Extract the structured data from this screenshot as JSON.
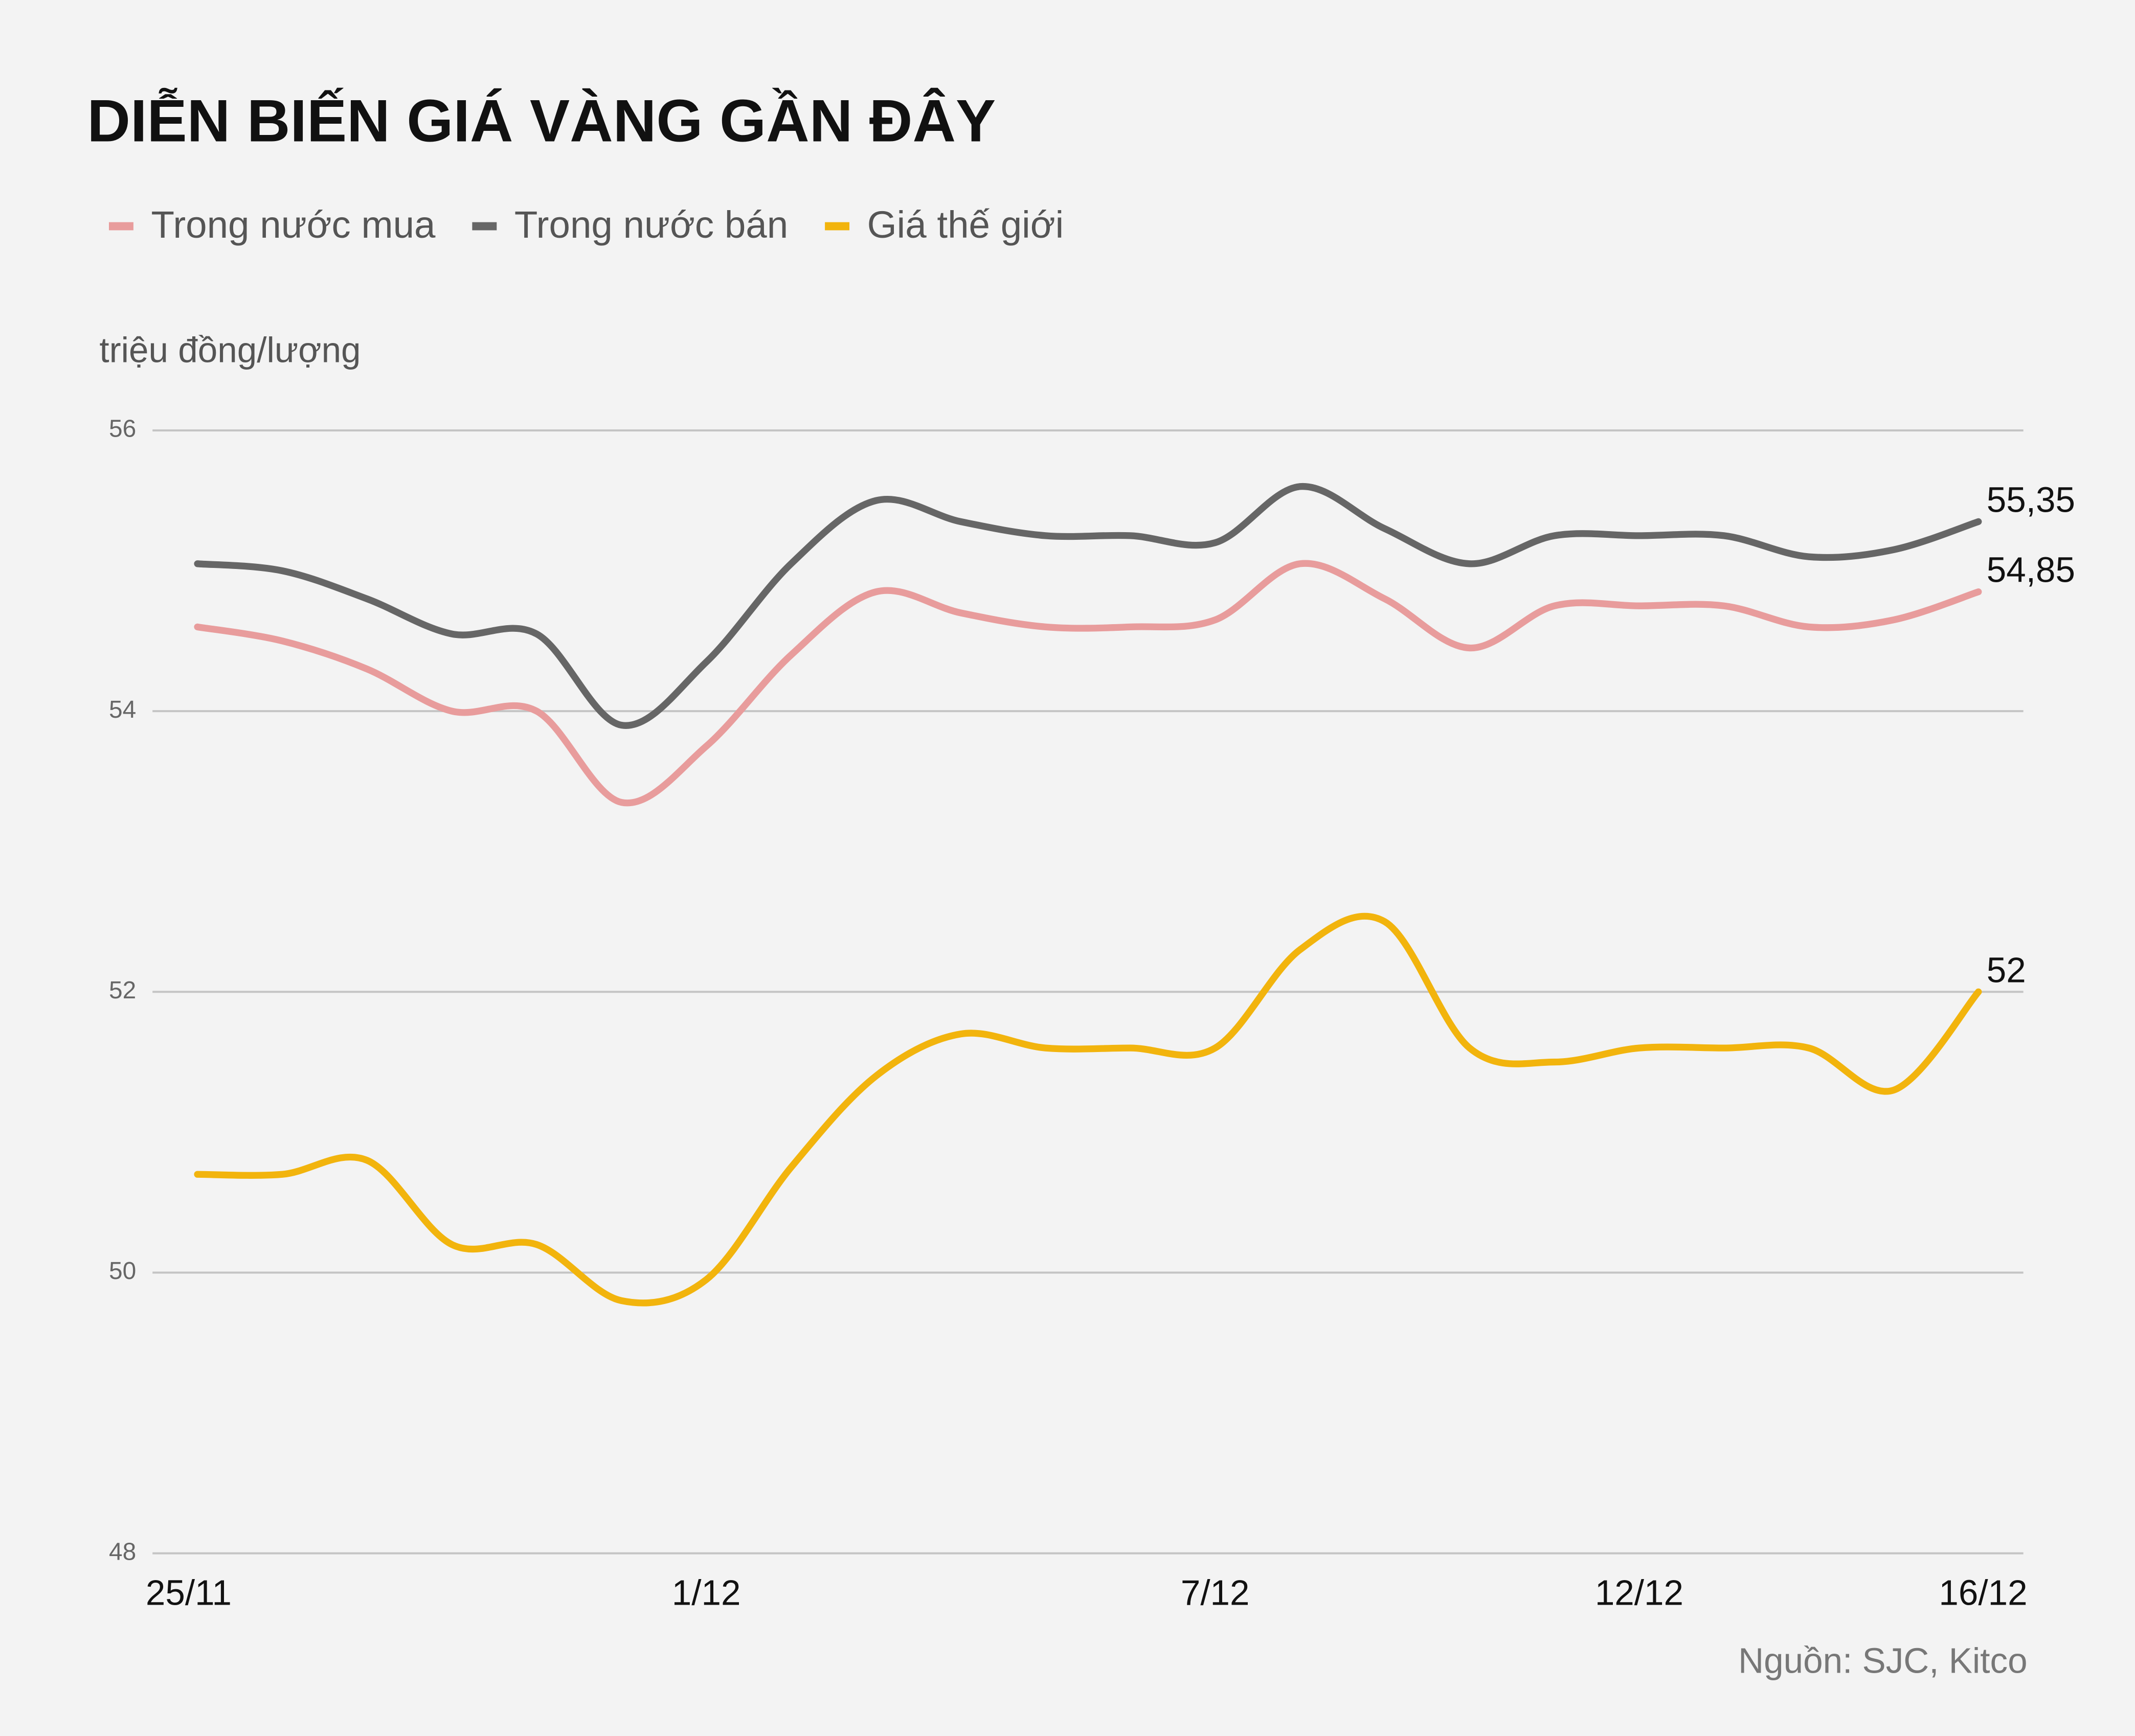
{
  "chart_data": {
    "type": "line",
    "title": "DIỄN BIẾN GIÁ VÀNG GẦN ĐÂY",
    "y_axis_label": "triệu đồng/lượng",
    "source": "Nguồn: SJC, Kitco",
    "categories": [
      "25/11",
      null,
      null,
      null,
      null,
      null,
      "1/12",
      null,
      null,
      null,
      null,
      null,
      "7/12",
      null,
      null,
      null,
      null,
      "12/12",
      null,
      null,
      null,
      "16/12"
    ],
    "ylim": [
      48,
      56
    ],
    "yticks": [
      48,
      50,
      52,
      54,
      56
    ],
    "grid": true,
    "series": [
      {
        "name": "Trong nước mua",
        "color": "#e89c9c",
        "values": [
          54.6,
          54.5,
          54.3,
          54.0,
          54.0,
          53.35,
          53.75,
          54.4,
          54.85,
          54.7,
          54.6,
          54.6,
          54.65,
          55.05,
          54.8,
          54.45,
          54.75,
          54.75,
          54.75,
          54.6,
          54.65,
          54.85
        ],
        "value_labels": [
          null,
          null,
          null,
          null,
          null,
          null,
          null,
          null,
          null,
          null,
          null,
          null,
          null,
          null,
          null,
          null,
          null,
          null,
          null,
          null,
          null,
          "54,85"
        ]
      },
      {
        "name": "Trong nước bán",
        "color": "#666666",
        "values": [
          55.05,
          55.0,
          54.8,
          54.55,
          54.55,
          53.9,
          54.35,
          55.05,
          55.5,
          55.35,
          55.25,
          55.25,
          55.2,
          55.6,
          55.3,
          55.05,
          55.25,
          55.25,
          55.25,
          55.1,
          55.15,
          55.35
        ],
        "value_labels": [
          null,
          null,
          null,
          null,
          null,
          null,
          null,
          null,
          null,
          null,
          null,
          null,
          null,
          null,
          null,
          null,
          null,
          null,
          null,
          null,
          null,
          "55,35"
        ]
      },
      {
        "name": "Giá thế giới",
        "color": "#f2b40d",
        "values": [
          50.7,
          50.7,
          50.8,
          50.2,
          50.2,
          49.8,
          49.95,
          50.75,
          51.4,
          51.7,
          51.6,
          51.6,
          51.6,
          52.3,
          52.5,
          51.6,
          51.5,
          51.6,
          51.6,
          51.6,
          51.3,
          52.0
        ]
      }
    ]
  }
}
